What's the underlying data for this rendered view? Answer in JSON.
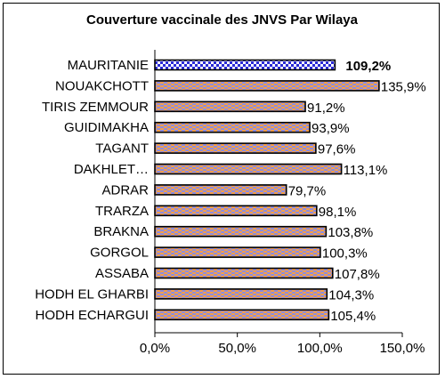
{
  "chart_data": {
    "type": "bar",
    "orientation": "horizontal",
    "title": "Couverture vaccinale des JNVS Par Wilaya",
    "xlabel": "",
    "ylabel": "",
    "xlim": [
      0,
      150
    ],
    "x_ticks": [
      "0,0%",
      "50,0%",
      "100,0%",
      "150,0%"
    ],
    "x_tick_values": [
      0,
      50,
      100,
      150
    ],
    "grid": false,
    "legend": "none",
    "categories": [
      "MAURITANIE",
      "NOUAKCHOTT",
      "TIRIS ZEMMOUR",
      "GUIDIMAKHA",
      "TAGANT",
      "DAKHLET…",
      "ADRAR",
      "TRARZA",
      "BRAKNA",
      "GORGOL",
      "ASSABA",
      "HODH EL GHARBI",
      "HODH ECHARGUI"
    ],
    "values": [
      109.2,
      135.9,
      91.2,
      93.9,
      97.6,
      113.1,
      79.7,
      98.1,
      103.8,
      100.3,
      107.8,
      104.3,
      105.4
    ],
    "value_labels": [
      "109,2%",
      "135,9%",
      "91,2%",
      "93,9%",
      "97,6%",
      "113,1%",
      "79,7%",
      "98,1%",
      "103,8%",
      "100,3%",
      "107,8%",
      "104,3%",
      "105,4%"
    ],
    "highlight_index": 0,
    "colors": {
      "highlight_bar": "#2b2bd6",
      "highlight_pattern": "#ffffff",
      "bar_fill": "#f5a04a",
      "bar_pattern": "#8c8ce0",
      "bar_border": "#000000"
    }
  }
}
